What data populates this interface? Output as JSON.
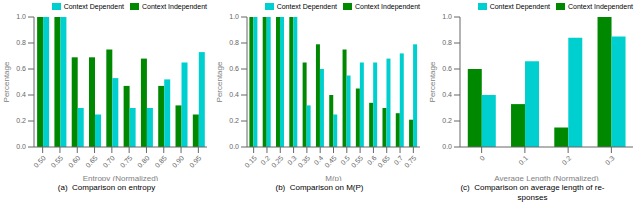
{
  "chart_data": [
    {
      "type": "bar",
      "title": "(a)  Comparison on entropy",
      "xlabel": "Entropy (Normalized)",
      "ylabel": "Percentage",
      "categories": [
        "0.50",
        "0.55",
        "0.60",
        "0.65",
        "0.70",
        "0.75",
        "0.80",
        "0.85",
        "0.90",
        "0.95"
      ],
      "series": [
        {
          "name": "Context Independent",
          "color": "#008800",
          "values": [
            1.0,
            1.0,
            0.69,
            0.69,
            0.75,
            0.47,
            0.68,
            0.47,
            0.32,
            0.25
          ]
        },
        {
          "name": "Context Dependent",
          "color": "#00CFCF",
          "values": [
            1.0,
            1.0,
            0.3,
            0.25,
            0.53,
            0.3,
            0.3,
            0.52,
            0.65,
            0.73
          ]
        }
      ],
      "ylim": [
        0,
        1.0
      ],
      "yticks": [
        {
          "value": 0,
          "label": "0.0"
        },
        0.2,
        0.4,
        0.6,
        0.8,
        {
          "value": 1,
          "label": "1.0"
        }
      ],
      "grid": false,
      "legend": "upper right"
    },
    {
      "type": "bar",
      "title": "(b)  Comparison on M(P)",
      "xlabel": "M(p)",
      "ylabel": "Percentage",
      "categories": [
        "0.15",
        "0.2",
        "0.25",
        "0.3",
        "0.35",
        "0.4",
        "0.45",
        "0.5",
        "0.55",
        "0.6",
        "0.65",
        "0.7",
        "0.75"
      ],
      "series": [
        {
          "name": "Context Independent",
          "color": "#008800",
          "values": [
            1.0,
            1.0,
            1.0,
            1.0,
            0.65,
            0.79,
            0.4,
            0.75,
            0.45,
            0.34,
            0.3,
            0.26,
            0.21
          ]
        },
        {
          "name": "Context Dependent",
          "color": "#00CFCF",
          "values": [
            1.0,
            1.0,
            1.0,
            1.0,
            0.32,
            0.6,
            0.25,
            0.55,
            0.65,
            0.65,
            0.68,
            0.72,
            0.79
          ]
        }
      ],
      "ylim": [
        0,
        1.0
      ],
      "yticks": [
        {
          "value": 0,
          "label": "0.0"
        },
        0.2,
        0.4,
        0.6,
        0.8,
        {
          "value": 1,
          "label": "1.0"
        }
      ],
      "grid": false,
      "legend": "upper right"
    },
    {
      "type": "bar",
      "title": "(c)  Comparison on average length of re-\nsponses",
      "xlabel": "Average Length (Normalized)",
      "ylabel": "Percentage",
      "categories": [
        "0",
        "0.1",
        "0.2",
        "0.3"
      ],
      "series": [
        {
          "name": "Context Independent",
          "color": "#008800",
          "values": [
            0.6,
            0.33,
            0.15,
            1.0
          ]
        },
        {
          "name": "Context Dependent",
          "color": "#00CFCF",
          "values": [
            0.4,
            0.66,
            0.84,
            0.85
          ]
        }
      ],
      "ylim": [
        0,
        1.0
      ],
      "yticks": [
        {
          "value": 0,
          "label": "0.0"
        },
        0.2,
        0.4,
        0.6,
        0.8,
        {
          "value": 1,
          "label": "1.0"
        }
      ],
      "grid": false,
      "legend": "upper right"
    }
  ]
}
